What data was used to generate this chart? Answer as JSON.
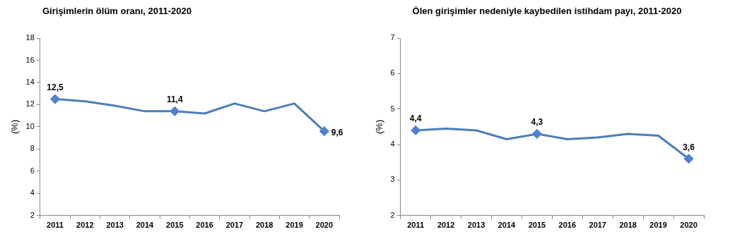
{
  "chart_data": [
    {
      "type": "line",
      "title": "Girişimlerin ölüm oranı, 2011-2020",
      "ylabel": "(%)",
      "categories": [
        "2011",
        "2012",
        "2013",
        "2014",
        "2015",
        "2016",
        "2017",
        "2018",
        "2019",
        "2020"
      ],
      "series": [
        {
          "color": "#4a7ebb",
          "values": [
            12.5,
            12.3,
            11.9,
            11.4,
            11.4,
            11.2,
            12.1,
            11.4,
            12.1,
            9.6
          ],
          "value_labels": [
            "12,5",
            null,
            null,
            null,
            "11,4",
            null,
            null,
            null,
            null,
            "9,6"
          ]
        }
      ],
      "ylim": [
        2,
        18
      ],
      "yticks": [
        2,
        4,
        6,
        8,
        10,
        12,
        14,
        16,
        18
      ],
      "grid": false,
      "legend": false
    },
    {
      "type": "line",
      "title": "Ölen girişimler nedeniyle kaybedilen istihdam payı, 2011-2020",
      "ylabel": "(%)",
      "categories": [
        "2011",
        "2012",
        "2013",
        "2014",
        "2015",
        "2016",
        "2017",
        "2018",
        "2019",
        "2020"
      ],
      "series": [
        {
          "color": "#4a7ebb",
          "values": [
            4.4,
            4.45,
            4.4,
            4.15,
            4.3,
            4.15,
            4.2,
            4.3,
            4.25,
            3.6
          ],
          "value_labels": [
            "4,4",
            null,
            null,
            null,
            "4,3",
            null,
            null,
            null,
            null,
            "3,6"
          ]
        }
      ],
      "ylim": [
        2,
        7
      ],
      "yticks": [
        2,
        3,
        4,
        5,
        6,
        7
      ],
      "grid": false,
      "legend": false
    }
  ]
}
